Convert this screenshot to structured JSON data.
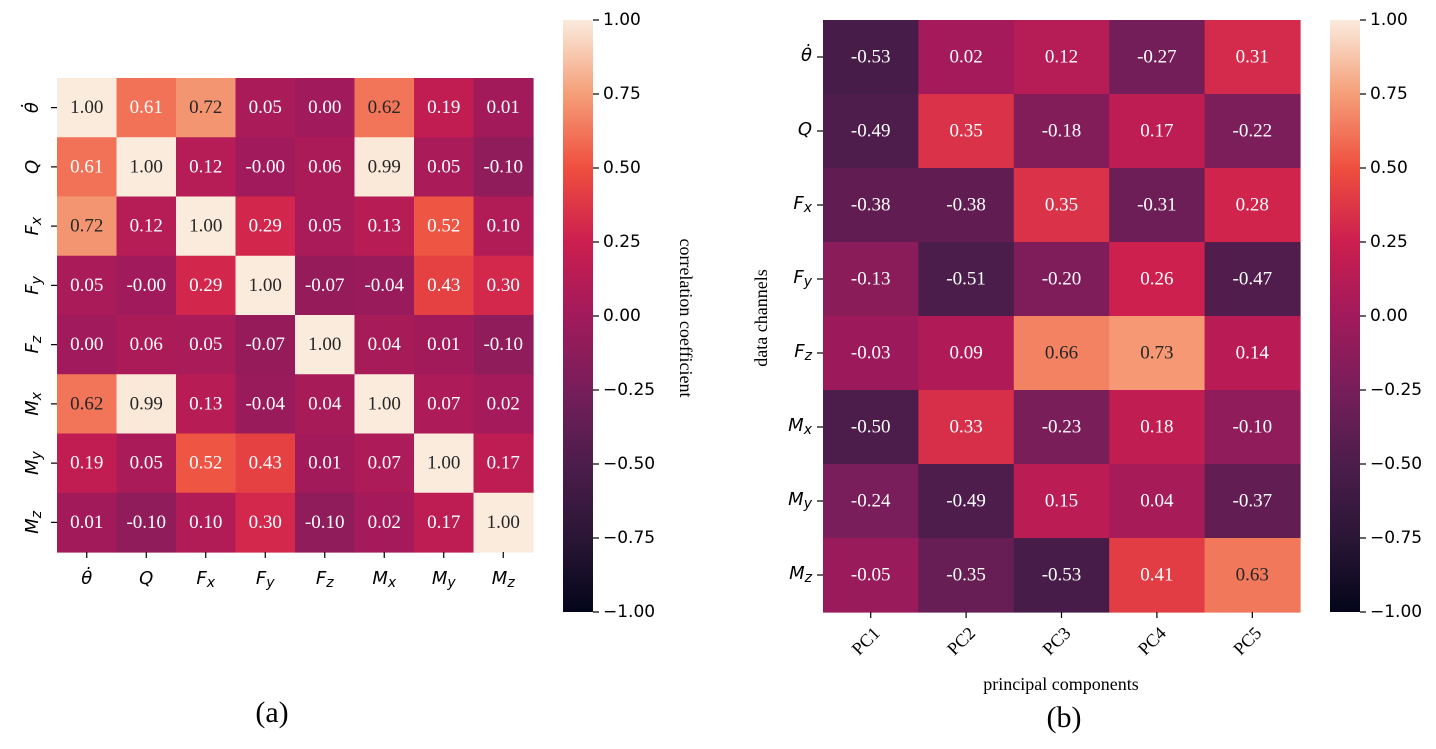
{
  "chart_data": [
    {
      "type": "heatmap",
      "panel_label": "(a)",
      "title": "",
      "xlabel": "",
      "ylabel": "",
      "rows": [
        "θ̇",
        "Q",
        "Fx",
        "Fy",
        "Fz",
        "Mx",
        "My",
        "Mz"
      ],
      "columns": [
        "θ̇",
        "Q",
        "Fx",
        "Fy",
        "Fz",
        "Mx",
        "My",
        "Mz"
      ],
      "row_labels": [
        {
          "base": "θ̇",
          "sub": ""
        },
        {
          "base": "Q",
          "sub": ""
        },
        {
          "base": "F",
          "sub": "x"
        },
        {
          "base": "F",
          "sub": "y"
        },
        {
          "base": "F",
          "sub": "z"
        },
        {
          "base": "M",
          "sub": "x"
        },
        {
          "base": "M",
          "sub": "y"
        },
        {
          "base": "M",
          "sub": "z"
        }
      ],
      "values": [
        [
          1.0,
          0.61,
          0.72,
          0.05,
          0.0,
          0.62,
          0.19,
          0.01
        ],
        [
          0.61,
          1.0,
          0.12,
          -0.0,
          0.06,
          0.99,
          0.05,
          -0.1
        ],
        [
          0.72,
          0.12,
          1.0,
          0.29,
          0.05,
          0.13,
          0.52,
          0.1
        ],
        [
          0.05,
          -0.0,
          0.29,
          1.0,
          -0.07,
          -0.04,
          0.43,
          0.3
        ],
        [
          0.0,
          0.06,
          0.05,
          -0.07,
          1.0,
          0.04,
          0.01,
          -0.1
        ],
        [
          0.62,
          0.99,
          0.13,
          -0.04,
          0.04,
          1.0,
          0.07,
          0.02
        ],
        [
          0.19,
          0.05,
          0.52,
          0.43,
          0.01,
          0.07,
          1.0,
          0.17
        ],
        [
          0.01,
          -0.1,
          0.1,
          0.3,
          -0.1,
          0.02,
          0.17,
          1.0
        ]
      ],
      "value_text": [
        [
          "1.00",
          "0.61",
          "0.72",
          "0.05",
          "0.00",
          "0.62",
          "0.19",
          "0.01"
        ],
        [
          "0.61",
          "1.00",
          "0.12",
          "-0.00",
          "0.06",
          "0.99",
          "0.05",
          "-0.10"
        ],
        [
          "0.72",
          "0.12",
          "1.00",
          "0.29",
          "0.05",
          "0.13",
          "0.52",
          "0.10"
        ],
        [
          "0.05",
          "-0.00",
          "0.29",
          "1.00",
          "-0.07",
          "-0.04",
          "0.43",
          "0.30"
        ],
        [
          "0.00",
          "0.06",
          "0.05",
          "-0.07",
          "1.00",
          "0.04",
          "0.01",
          "-0.10"
        ],
        [
          "0.62",
          "0.99",
          "0.13",
          "-0.04",
          "0.04",
          "1.00",
          "0.07",
          "0.02"
        ],
        [
          "0.19",
          "0.05",
          "0.52",
          "0.43",
          "0.01",
          "0.07",
          "1.00",
          "0.17"
        ],
        [
          "0.01",
          "-0.10",
          "0.10",
          "0.30",
          "-0.10",
          "0.02",
          "0.17",
          "1.00"
        ]
      ],
      "colorbar": {
        "label": "correlation coefficient",
        "range": [
          -1.0,
          1.0
        ],
        "ticks": [
          "1.00",
          "0.75",
          "0.50",
          "0.25",
          "0.00",
          "−0.25",
          "−0.50",
          "−0.75",
          "−1.00"
        ],
        "tick_values": [
          1.0,
          0.75,
          0.5,
          0.25,
          0.0,
          -0.25,
          -0.5,
          -0.75,
          -1.0
        ]
      }
    },
    {
      "type": "heatmap",
      "panel_label": "(b)",
      "title": "",
      "xlabel": "principal components",
      "ylabel": "data channels",
      "rows": [
        "θ̇",
        "Q",
        "Fx",
        "Fy",
        "Fz",
        "Mx",
        "My",
        "Mz"
      ],
      "row_labels": [
        {
          "base": "θ̇",
          "sub": ""
        },
        {
          "base": "Q",
          "sub": ""
        },
        {
          "base": "F",
          "sub": "x"
        },
        {
          "base": "F",
          "sub": "y"
        },
        {
          "base": "F",
          "sub": "z"
        },
        {
          "base": "M",
          "sub": "x"
        },
        {
          "base": "M",
          "sub": "y"
        },
        {
          "base": "M",
          "sub": "z"
        }
      ],
      "columns": [
        "PC1",
        "PC2",
        "PC3",
        "PC4",
        "PC5"
      ],
      "values": [
        [
          -0.53,
          0.02,
          0.12,
          -0.27,
          0.31
        ],
        [
          -0.49,
          0.35,
          -0.18,
          0.17,
          -0.22
        ],
        [
          -0.38,
          -0.38,
          0.35,
          -0.31,
          0.28
        ],
        [
          -0.13,
          -0.51,
          -0.2,
          0.26,
          -0.47
        ],
        [
          -0.03,
          0.09,
          0.66,
          0.73,
          0.14
        ],
        [
          -0.5,
          0.33,
          -0.23,
          0.18,
          -0.1
        ],
        [
          -0.24,
          -0.49,
          0.15,
          0.04,
          -0.37
        ],
        [
          -0.05,
          -0.35,
          -0.53,
          0.41,
          0.63
        ]
      ],
      "value_text": [
        [
          "-0.53",
          "0.02",
          "0.12",
          "-0.27",
          "0.31"
        ],
        [
          "-0.49",
          "0.35",
          "-0.18",
          "0.17",
          "-0.22"
        ],
        [
          "-0.38",
          "-0.38",
          "0.35",
          "-0.31",
          "0.28"
        ],
        [
          "-0.13",
          "-0.51",
          "-0.20",
          "0.26",
          "-0.47"
        ],
        [
          "-0.03",
          "0.09",
          "0.66",
          "0.73",
          "0.14"
        ],
        [
          "-0.50",
          "0.33",
          "-0.23",
          "0.18",
          "-0.10"
        ],
        [
          "-0.24",
          "-0.49",
          "0.15",
          "0.04",
          "-0.37"
        ],
        [
          "-0.05",
          "-0.35",
          "-0.53",
          "0.41",
          "0.63"
        ]
      ],
      "colorbar": {
        "label": "",
        "range": [
          -1.0,
          1.0
        ],
        "ticks": [
          "1.00",
          "0.75",
          "0.50",
          "0.25",
          "0.00",
          "−0.25",
          "−0.50",
          "−0.75",
          "−1.00"
        ],
        "tick_values": [
          1.0,
          0.75,
          0.5,
          0.25,
          0.0,
          -0.25,
          -0.5,
          -0.75,
          -1.0
        ]
      }
    }
  ]
}
